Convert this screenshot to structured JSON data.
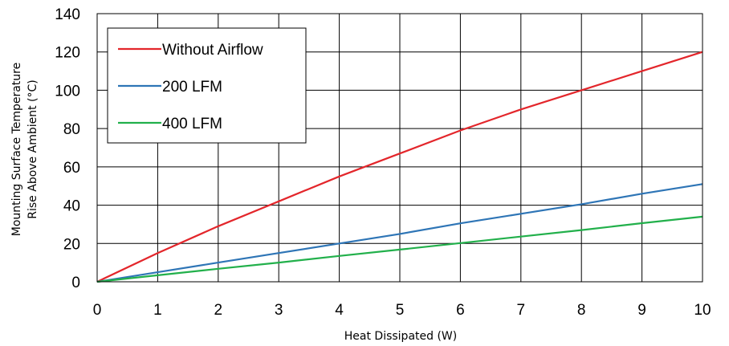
{
  "chart_data": {
    "type": "line",
    "title": "",
    "xlabel": "Heat Dissipated (W)",
    "ylabel_line1": "Mounting Surface Temperature",
    "ylabel_line2": "Rise Above  Ambient (°C)",
    "xlim": [
      0,
      10
    ],
    "ylim": [
      0,
      140
    ],
    "x_ticks": [
      "0",
      "1",
      "2",
      "3",
      "4",
      "5",
      "6",
      "7",
      "8",
      "9",
      "10"
    ],
    "y_ticks": [
      "0",
      "20",
      "40",
      "60",
      "80",
      "100",
      "120",
      "140"
    ],
    "grid": true,
    "legend_position": "top-left",
    "series": [
      {
        "name": "Without Airflow",
        "color": "#e3262b",
        "x": [
          0,
          1,
          2,
          3,
          4,
          5,
          6,
          7,
          8,
          9,
          10
        ],
        "y": [
          0,
          15,
          29,
          42,
          55,
          67,
          79,
          90,
          100,
          110,
          120
        ]
      },
      {
        "name": "200 LFM",
        "color": "#2e75b6",
        "x": [
          0,
          1,
          2,
          3,
          4,
          5,
          6,
          7,
          8,
          9,
          10
        ],
        "y": [
          0,
          5,
          10,
          15,
          20,
          25,
          30.5,
          35.5,
          40.5,
          46,
          51
        ]
      },
      {
        "name": "400 LFM",
        "color": "#22b04b",
        "x": [
          0,
          1,
          2,
          3,
          4,
          5,
          6,
          7,
          8,
          9,
          10
        ],
        "y": [
          0,
          3.4,
          6.8,
          10,
          13.5,
          16.8,
          20.2,
          23.6,
          27,
          30.6,
          34
        ]
      }
    ]
  }
}
